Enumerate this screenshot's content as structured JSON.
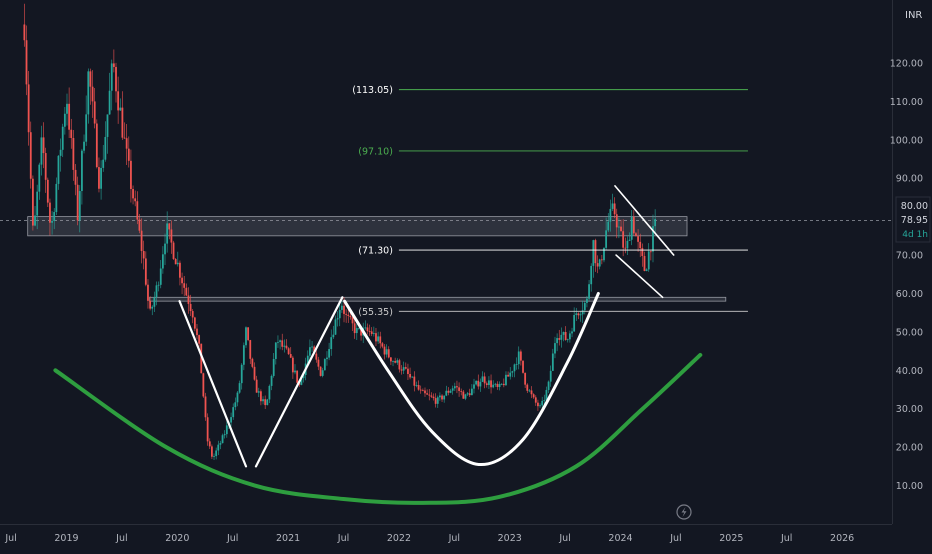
{
  "chart_data": {
    "type": "candlestick",
    "currency": "INR",
    "price_axis": {
      "min": 0,
      "max": 130,
      "ticks": [
        10,
        20,
        30,
        40,
        50,
        60,
        70,
        80,
        90,
        100,
        110,
        120
      ],
      "tick_labels": [
        "10.00",
        "20.00",
        "30.00",
        "40.00",
        "50.00",
        "60.00",
        "70.00",
        "80.00",
        "90.00",
        "100.00",
        "110.00",
        "120.00"
      ]
    },
    "time_axis": {
      "start": 2018.4,
      "end": 2026.45,
      "ticks": [
        {
          "t": 2018.5,
          "label": "Jul"
        },
        {
          "t": 2019.0,
          "label": "2019"
        },
        {
          "t": 2019.5,
          "label": "Jul"
        },
        {
          "t": 2020.0,
          "label": "2020"
        },
        {
          "t": 2020.5,
          "label": "Jul"
        },
        {
          "t": 2021.0,
          "label": "2021"
        },
        {
          "t": 2021.5,
          "label": "Jul"
        },
        {
          "t": 2022.0,
          "label": "2022"
        },
        {
          "t": 2022.5,
          "label": "Jul"
        },
        {
          "t": 2023.0,
          "label": "2023"
        },
        {
          "t": 2023.5,
          "label": "Jul"
        },
        {
          "t": 2024.0,
          "label": "2024"
        },
        {
          "t": 2024.5,
          "label": "Jul"
        },
        {
          "t": 2025.0,
          "label": "2025"
        },
        {
          "t": 2025.5,
          "label": "Jul"
        },
        {
          "t": 2026.0,
          "label": "2026"
        }
      ]
    },
    "last_price_badge": {
      "high": "80.00",
      "last": "78.95",
      "countdown": "4d 1h",
      "value": 78.95
    },
    "price_path": [
      [
        2018.62,
        130
      ],
      [
        2018.7,
        74
      ],
      [
        2018.78,
        100
      ],
      [
        2018.86,
        76
      ],
      [
        2019.0,
        112
      ],
      [
        2019.1,
        80
      ],
      [
        2019.2,
        118
      ],
      [
        2019.3,
        88
      ],
      [
        2019.42,
        120
      ],
      [
        2019.55,
        94
      ],
      [
        2019.62,
        82
      ],
      [
        2019.7,
        68
      ],
      [
        2019.75,
        54
      ],
      [
        2019.82,
        62
      ],
      [
        2019.9,
        77
      ],
      [
        2020.0,
        68
      ],
      [
        2020.08,
        60
      ],
      [
        2020.14,
        55
      ],
      [
        2020.2,
        45
      ],
      [
        2020.27,
        22
      ],
      [
        2020.32,
        17
      ],
      [
        2020.42,
        23
      ],
      [
        2020.55,
        34
      ],
      [
        2020.62,
        50
      ],
      [
        2020.7,
        36
      ],
      [
        2020.8,
        30
      ],
      [
        2020.9,
        48
      ],
      [
        2021.0,
        44
      ],
      [
        2021.1,
        36
      ],
      [
        2021.2,
        46
      ],
      [
        2021.3,
        39
      ],
      [
        2021.38,
        48
      ],
      [
        2021.48,
        58
      ],
      [
        2021.52,
        54
      ],
      [
        2021.62,
        50
      ],
      [
        2021.75,
        50
      ],
      [
        2021.9,
        44
      ],
      [
        2022.05,
        40
      ],
      [
        2022.2,
        34
      ],
      [
        2022.35,
        32
      ],
      [
        2022.5,
        36
      ],
      [
        2022.6,
        33
      ],
      [
        2022.75,
        38
      ],
      [
        2022.9,
        35
      ],
      [
        2023.0,
        39
      ],
      [
        2023.08,
        44
      ],
      [
        2023.15,
        36
      ],
      [
        2023.22,
        32
      ],
      [
        2023.28,
        30
      ],
      [
        2023.35,
        36
      ],
      [
        2023.42,
        50
      ],
      [
        2023.52,
        48
      ],
      [
        2023.6,
        55
      ],
      [
        2023.7,
        58
      ],
      [
        2023.75,
        74
      ],
      [
        2023.8,
        65
      ],
      [
        2023.88,
        78
      ],
      [
        2023.94,
        82
      ],
      [
        2024.0,
        75
      ],
      [
        2024.05,
        70
      ],
      [
        2024.1,
        80
      ],
      [
        2024.16,
        72
      ],
      [
        2024.22,
        66
      ],
      [
        2024.28,
        74
      ],
      [
        2024.33,
        78.95
      ]
    ],
    "annotations": {
      "horizontal_levels": [
        {
          "label": "(113.05)",
          "value": 113.05,
          "t_start": 2022.0,
          "t_end": 2025.15,
          "label_color": "#ffffff",
          "line_color": "#4caf50"
        },
        {
          "label": "(97.10)",
          "value": 97.1,
          "t_start": 2022.0,
          "t_end": 2025.15,
          "label_color": "#4caf50",
          "line_color": "#4caf50"
        },
        {
          "label": "(71.30)",
          "value": 71.3,
          "t_start": 2022.0,
          "t_end": 2025.15,
          "label_color": "#ffffff",
          "line_color": "#ffffff"
        },
        {
          "label": "(55.35)",
          "value": 55.35,
          "t_start": 2022.0,
          "t_end": 2025.15,
          "label_color": "#cccccc",
          "line_color": "#cccccc"
        }
      ],
      "zones": [
        {
          "name": "resistance-zone",
          "t_start": 2018.65,
          "t_end": 2024.6,
          "high": 80,
          "low": 75
        },
        {
          "name": "neckline-zone",
          "t_start": 2019.75,
          "t_end": 2024.95,
          "high": 59,
          "low": 58
        }
      ],
      "white_lines": [
        {
          "name": "w-leg-1",
          "points": [
            [
              2020.02,
              58
            ],
            [
              2020.62,
              15
            ]
          ]
        },
        {
          "name": "w-leg-2",
          "points": [
            [
              2020.71,
              15
            ],
            [
              2021.49,
              59
            ]
          ]
        },
        {
          "name": "flag-upper",
          "points": [
            [
              2023.95,
              88
            ],
            [
              2024.48,
              70
            ]
          ]
        },
        {
          "name": "flag-lower",
          "points": [
            [
              2023.96,
              70
            ],
            [
              2024.38,
              59
            ]
          ]
        }
      ],
      "white_cup": {
        "points": [
          [
            2021.51,
            58
          ],
          [
            2021.9,
            40
          ],
          [
            2022.3,
            24
          ],
          [
            2022.72,
            15.5
          ],
          [
            2023.12,
            22
          ],
          [
            2023.52,
            42
          ],
          [
            2023.8,
            60
          ]
        ]
      },
      "green_arc": {
        "points": [
          [
            2018.9,
            40
          ],
          [
            2019.9,
            20
          ],
          [
            2020.7,
            10
          ],
          [
            2021.5,
            6.5
          ],
          [
            2022.2,
            5.5
          ],
          [
            2022.9,
            7
          ],
          [
            2023.6,
            15
          ],
          [
            2024.2,
            30
          ],
          [
            2024.72,
            44
          ]
        ]
      },
      "current_price_line": 78.95
    },
    "colors": {
      "background": "#131722",
      "up": "#26a69a",
      "down": "#ef5350",
      "axis_text": "#b2b5be",
      "level_green": "#4caf50",
      "arc_green": "#2e9e3f"
    }
  }
}
